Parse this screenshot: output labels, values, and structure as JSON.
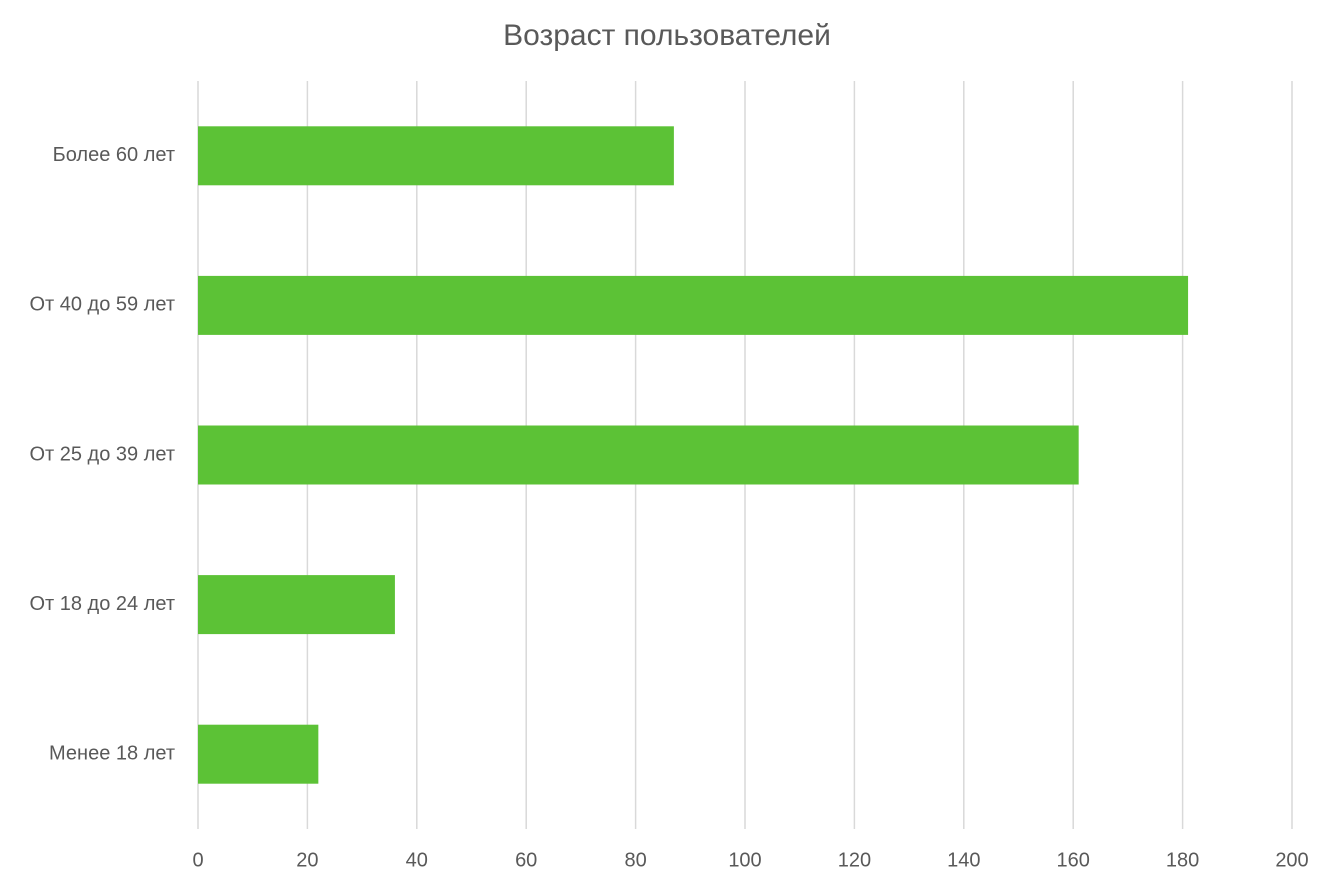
{
  "chart_data": {
    "type": "bar",
    "orientation": "horizontal",
    "title": "Возраст пользователей",
    "categories": [
      "Более 60 лет",
      "От 40 до 59 лет",
      "От 25 до 39 лет",
      "От 18 до 24 лет",
      "Менее 18 лет"
    ],
    "values": [
      87,
      181,
      161,
      36,
      22
    ],
    "color": "#5cc236",
    "xlim": [
      0,
      200
    ],
    "xticks": [
      0,
      20,
      40,
      60,
      80,
      100,
      120,
      140,
      160,
      180,
      200
    ],
    "grid": true
  }
}
